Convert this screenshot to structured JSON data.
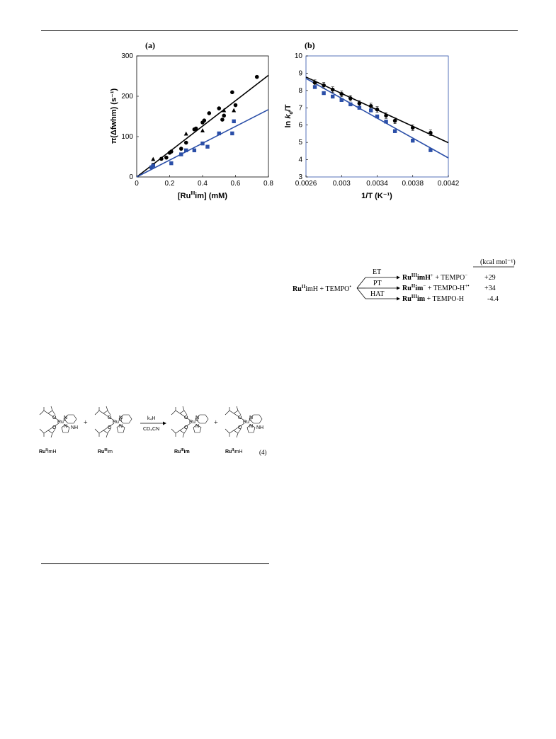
{
  "chart_data": [
    {
      "type": "scatter",
      "panel_label": "(a)",
      "xlabel_parts": [
        "[Ru",
        "III",
        "im] (mM)"
      ],
      "ylabel": "π(Δfwhm) (s⁻¹)",
      "xlim": [
        0,
        0.8
      ],
      "ylim": [
        0,
        300
      ],
      "xticks": [
        0,
        0.2,
        0.4,
        0.6,
        0.8
      ],
      "xtick_labels": [
        "0",
        "0.2",
        "0.4",
        "0.6",
        "0.8"
      ],
      "yticks": [
        0,
        100,
        200,
        300
      ],
      "ytick_labels": [
        "0",
        "100",
        "200",
        "300"
      ],
      "grid": false,
      "series": [
        {
          "marker": "circle",
          "color": "#000000",
          "points": [
            [
              0.1,
              30
            ],
            [
              0.15,
              45
            ],
            [
              0.18,
              48
            ],
            [
              0.2,
              60
            ],
            [
              0.21,
              63
            ],
            [
              0.27,
              70
            ],
            [
              0.3,
              85
            ],
            [
              0.35,
              118
            ],
            [
              0.36,
              120
            ],
            [
              0.4,
              135
            ],
            [
              0.41,
              140
            ],
            [
              0.44,
              158
            ],
            [
              0.5,
              170
            ],
            [
              0.52,
              142
            ],
            [
              0.53,
              152
            ],
            [
              0.58,
              210
            ],
            [
              0.6,
              178
            ],
            [
              0.73,
              248
            ]
          ]
        },
        {
          "marker": "triangle",
          "color": "#000000",
          "points": [
            [
              0.1,
              44
            ],
            [
              0.3,
              107
            ],
            [
              0.4,
              115
            ],
            [
              0.53,
              165
            ],
            [
              0.59,
              165
            ]
          ]
        },
        {
          "marker": "square",
          "color": "#2b4fa8",
          "points": [
            [
              0.09,
              24
            ],
            [
              0.1,
              28
            ],
            [
              0.21,
              34
            ],
            [
              0.27,
              56
            ],
            [
              0.3,
              66
            ],
            [
              0.35,
              66
            ],
            [
              0.4,
              83
            ],
            [
              0.43,
              75
            ],
            [
              0.5,
              108
            ],
            [
              0.58,
              108
            ],
            [
              0.59,
              138
            ]
          ]
        }
      ],
      "fit_lines": [
        {
          "color": "#000000",
          "x": [
            0,
            0.8
          ],
          "y": [
            0,
            252
          ]
        },
        {
          "color": "#2b4fa8",
          "x": [
            0,
            0.8
          ],
          "y": [
            0,
            167
          ]
        }
      ]
    },
    {
      "type": "scatter",
      "panel_label": "(b)",
      "xlabel": "1/T (K⁻¹)",
      "ylabel": "ln k_d/T",
      "xlim": [
        0.0026,
        0.0042
      ],
      "ylim": [
        3,
        10
      ],
      "xticks": [
        0.0026,
        0.003,
        0.0034,
        0.0038,
        0.0042
      ],
      "xtick_labels": [
        "0.0026",
        "0.003",
        "0.0034",
        "0.0038",
        "0.0042"
      ],
      "yticks": [
        3,
        4,
        5,
        6,
        7,
        8,
        9,
        10
      ],
      "ytick_labels": [
        "3",
        "4",
        "5",
        "6",
        "7",
        "8",
        "9",
        "10"
      ],
      "grid": false,
      "series": [
        {
          "marker": "circle",
          "color": "#000000",
          "error_bars": true,
          "points": [
            [
              0.0027,
              8.45
            ],
            [
              0.0028,
              8.3
            ],
            [
              0.0029,
              8.05
            ],
            [
              0.003,
              7.8
            ],
            [
              0.0031,
              7.55
            ],
            [
              0.0032,
              7.25
            ],
            [
              0.00333,
              7.1
            ],
            [
              0.0034,
              6.9
            ],
            [
              0.0035,
              6.55
            ],
            [
              0.0036,
              6.25
            ],
            [
              0.0038,
              5.85
            ],
            [
              0.004,
              5.55
            ]
          ]
        },
        {
          "marker": "square",
          "color": "#2b4fa8",
          "points": [
            [
              0.0027,
              8.2
            ],
            [
              0.0028,
              7.85
            ],
            [
              0.0029,
              7.65
            ],
            [
              0.003,
              7.45
            ],
            [
              0.0031,
              7.2
            ],
            [
              0.0032,
              7.0
            ],
            [
              0.00333,
              6.85
            ],
            [
              0.0034,
              6.5
            ],
            [
              0.0035,
              6.2
            ],
            [
              0.0036,
              5.65
            ],
            [
              0.0038,
              5.1
            ],
            [
              0.004,
              4.55
            ]
          ]
        }
      ],
      "fit_lines": [
        {
          "color": "#000000",
          "x": [
            0.0026,
            0.0042
          ],
          "y": [
            8.78,
            4.98
          ]
        },
        {
          "color": "#2b4fa8",
          "x": [
            0.0026,
            0.0042
          ],
          "y": [
            8.7,
            4.1
          ]
        }
      ]
    }
  ],
  "scheme": {
    "header": "(kcal mol⁻¹)",
    "reactant_parts": [
      "Ru",
      "II",
      "imH + TEMPO",
      "•"
    ],
    "paths": [
      {
        "label": "ET",
        "product_parts": [
          "Ru",
          "III",
          "imH",
          "+",
          " + TEMPO",
          "−"
        ],
        "energy": "+29"
      },
      {
        "label": "PT",
        "product_parts": [
          "Ru",
          "II",
          "im",
          "−",
          " + TEMPO-H",
          "+•"
        ],
        "energy": "+34"
      },
      {
        "label": "HAT",
        "product_parts": [
          "Ru",
          "III",
          "im",
          "",
          " + TEMPO-H",
          ""
        ],
        "energy": "-4.4"
      }
    ]
  },
  "equation4": {
    "reagent": "k₄H",
    "solvent": "CD₃CN",
    "number": "(4)",
    "plus": "+",
    "labels": [
      {
        "parts": [
          "Ru",
          "II",
          "imH"
        ]
      },
      {
        "parts": [
          "Ru",
          "III",
          "im"
        ]
      },
      {
        "parts": [
          "Ru",
          "III",
          "im"
        ]
      },
      {
        "parts": [
          "Ru",
          "II",
          "imH"
        ]
      }
    ],
    "metal_labels": [
      "Ru",
      "II",
      "Ru",
      "III",
      "Ru",
      "III",
      "Ru",
      "II"
    ],
    "atom_labels": {
      "O": "O",
      "N": "N",
      "NH": "NH"
    }
  }
}
